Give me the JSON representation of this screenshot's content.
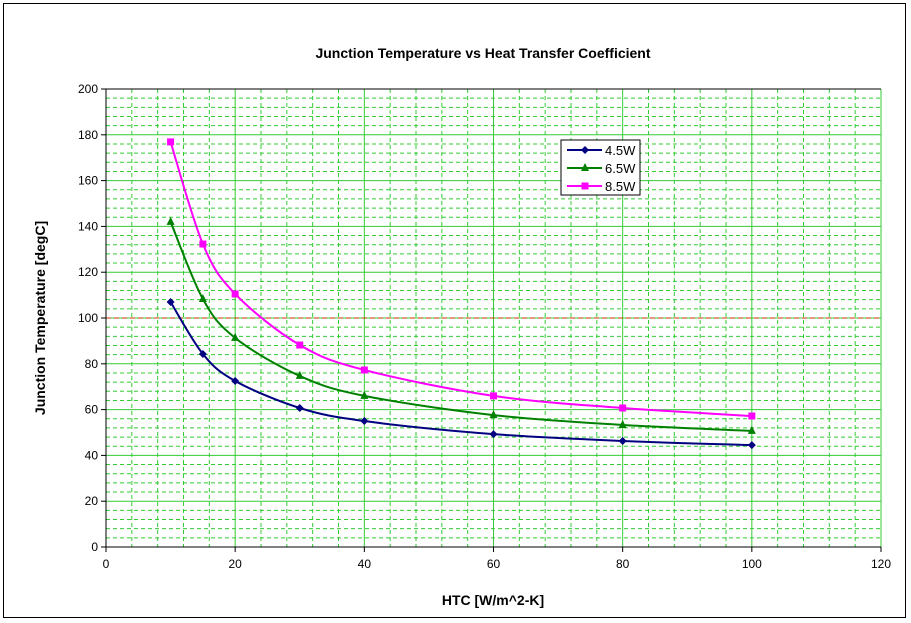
{
  "chart_data": {
    "type": "line",
    "title": "Junction Temperature vs Heat Transfer Coefficient",
    "xlabel": "HTC [W/m^2-K]",
    "ylabel": "Junction Temperature [degC]",
    "xlim": [
      0,
      120
    ],
    "ylim": [
      0,
      200
    ],
    "x_ticks": [
      0,
      20,
      40,
      60,
      80,
      100,
      120
    ],
    "y_ticks": [
      0,
      20,
      40,
      60,
      80,
      100,
      120,
      140,
      160,
      180,
      200
    ],
    "grid": true,
    "grid_color": "#33cc33",
    "legend_position": "top-right",
    "x": [
      10,
      15,
      20,
      30,
      40,
      60,
      80,
      100
    ],
    "series": [
      {
        "name": "4.5W",
        "color": "#000080",
        "marker": "diamond",
        "values": [
          107,
          84.3,
          72.5,
          60.7,
          55,
          49.3,
          46.3,
          44.5
        ]
      },
      {
        "name": "6.5W",
        "color": "#008000",
        "marker": "triangle",
        "values": [
          142,
          108.3,
          91.3,
          74.7,
          66,
          57.6,
          53.3,
          50.7
        ]
      },
      {
        "name": "8.5W",
        "color": "#ff00ff",
        "marker": "square",
        "values": [
          176.9,
          132.3,
          110.5,
          88.2,
          77.3,
          66,
          60.7,
          57.2
        ]
      }
    ],
    "reference_line": {
      "y": 100,
      "color": "#cc3300",
      "style": "dashed"
    }
  }
}
